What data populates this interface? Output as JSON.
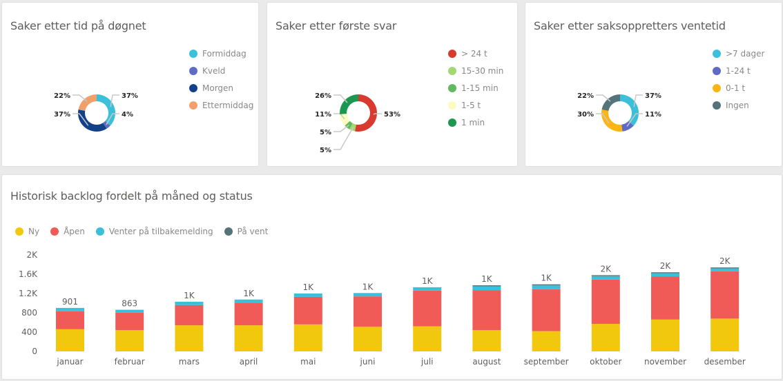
{
  "donuts": [
    {
      "title": "Saker etter tid på døgnet",
      "chart_data": {
        "type": "pie",
        "title": "Saker etter tid på døgnet",
        "legend_position": "right",
        "slices": [
          {
            "label": "Formiddag",
            "value": 37,
            "display": "37%",
            "color": "#3AC0D8"
          },
          {
            "label": "Kveld",
            "value": 4,
            "display": "4%",
            "color": "#5F6BC2"
          },
          {
            "label": "Morgen",
            "value": 37,
            "display": "37%",
            "color": "#12418A"
          },
          {
            "label": "Ettermiddag",
            "value": 22,
            "display": "22%",
            "color": "#F0A06A"
          }
        ]
      }
    },
    {
      "title": "Saker etter første svar",
      "chart_data": {
        "type": "pie",
        "title": "Saker etter første svar",
        "legend_position": "right",
        "slices": [
          {
            "label": "> 24 t",
            "value": 53,
            "display": "53%",
            "color": "#D93A30"
          },
          {
            "label": "15-30 min",
            "value": 5,
            "display": "5%",
            "color": "#A4D86E"
          },
          {
            "label": "1-15 min",
            "value": 5,
            "display": "5%",
            "color": "#62B860"
          },
          {
            "label": "1-5 t",
            "value": 11,
            "display": "11%",
            "color": "#FDFCC0"
          },
          {
            "label": "1 min",
            "value": 26,
            "display": "26%",
            "color": "#1A9850"
          }
        ]
      }
    },
    {
      "title": "Saker etter saksoppretters ventetid",
      "chart_data": {
        "type": "pie",
        "title": "Saker etter saksoppretters ventetid",
        "legend_position": "right",
        "slices": [
          {
            "label": ">7 dager",
            "value": 37,
            "display": "37%",
            "color": "#3AC0D8"
          },
          {
            "label": "1-24 t",
            "value": 11,
            "display": "11%",
            "color": "#5F6BC2"
          },
          {
            "label": "0-1 t",
            "value": 30,
            "display": "30%",
            "color": "#FDB515"
          },
          {
            "label": "Ingen",
            "value": 22,
            "display": "22%",
            "color": "#55737A"
          }
        ]
      }
    }
  ],
  "backlog": {
    "title": "Historisk backlog fordelt på måned og status",
    "chart_data": {
      "type": "bar",
      "stacked": true,
      "title": "Historisk backlog fordelt på måned og status",
      "xlabel": "",
      "ylabel": "",
      "ylim": [
        0,
        2000
      ],
      "yticks": [
        0,
        400,
        800,
        1200,
        1600,
        2000
      ],
      "ytick_labels": [
        "0",
        "400",
        "800",
        "1.2K",
        "1.6K",
        "2K"
      ],
      "grid": false,
      "legend_position": "top-left",
      "categories": [
        "januar",
        "februar",
        "mars",
        "april",
        "mai",
        "juni",
        "juli",
        "august",
        "september",
        "oktober",
        "november",
        "desember"
      ],
      "series": [
        {
          "name": "Ny",
          "color": "#F2C80F",
          "values": [
            460,
            440,
            540,
            540,
            560,
            510,
            520,
            440,
            420,
            570,
            660,
            680
          ]
        },
        {
          "name": "Åpen",
          "color": "#F05A57",
          "values": [
            371,
            363,
            420,
            470,
            570,
            630,
            740,
            830,
            870,
            920,
            890,
            980
          ]
        },
        {
          "name": "Venter på tilbakemelding",
          "color": "#3AC0D8",
          "values": [
            70,
            60,
            70,
            65,
            70,
            70,
            70,
            80,
            80,
            70,
            70,
            60
          ]
        },
        {
          "name": "På vent",
          "color": "#55737A",
          "values": [
            0,
            0,
            0,
            0,
            0,
            0,
            0,
            20,
            20,
            20,
            20,
            20
          ]
        }
      ],
      "data_labels": [
        "901",
        "863",
        "1K",
        "1K",
        "1K",
        "1K",
        "1K",
        "1K",
        "1K",
        "2K",
        "2K",
        "2K"
      ]
    }
  }
}
